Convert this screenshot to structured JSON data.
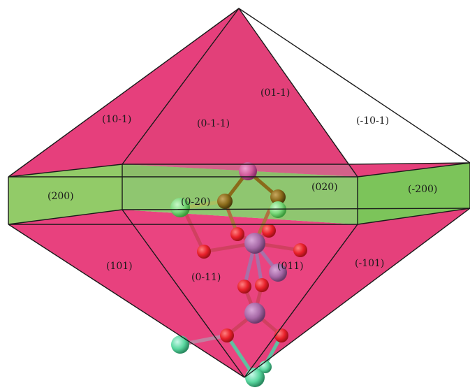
{
  "facets": [
    {
      "id": "10-1",
      "label": "(10-1)"
    },
    {
      "id": "0-1-1",
      "label": "(0-1-1)"
    },
    {
      "id": "01-1",
      "label": "(01-1)"
    },
    {
      "id": "-10-1",
      "label": "(-10-1)"
    },
    {
      "id": "200",
      "label": "(200)"
    },
    {
      "id": "0-20",
      "label": "(0-20)"
    },
    {
      "id": "020",
      "label": "(020)"
    },
    {
      "id": "-200",
      "label": "(-200)"
    },
    {
      "id": "101",
      "label": "(101)"
    },
    {
      "id": "0-11",
      "label": "(0-11)"
    },
    {
      "id": "011",
      "label": "(011)"
    },
    {
      "id": "-101",
      "label": "(-101)"
    }
  ],
  "colors": {
    "pyramid_face": "#e8417e",
    "prism_face": "#7cc45a",
    "edge": "#1a1a1a",
    "oxygen_atom": "#e8202a",
    "metal_atom": "#a86aa8",
    "metal_atom_light": "#c85aa8",
    "pink_atom": "#d05a9a",
    "brown_atom": "#8a6a1a",
    "light_green_atom": "#7ad87a",
    "teal_atom": "#5ad8a0"
  }
}
